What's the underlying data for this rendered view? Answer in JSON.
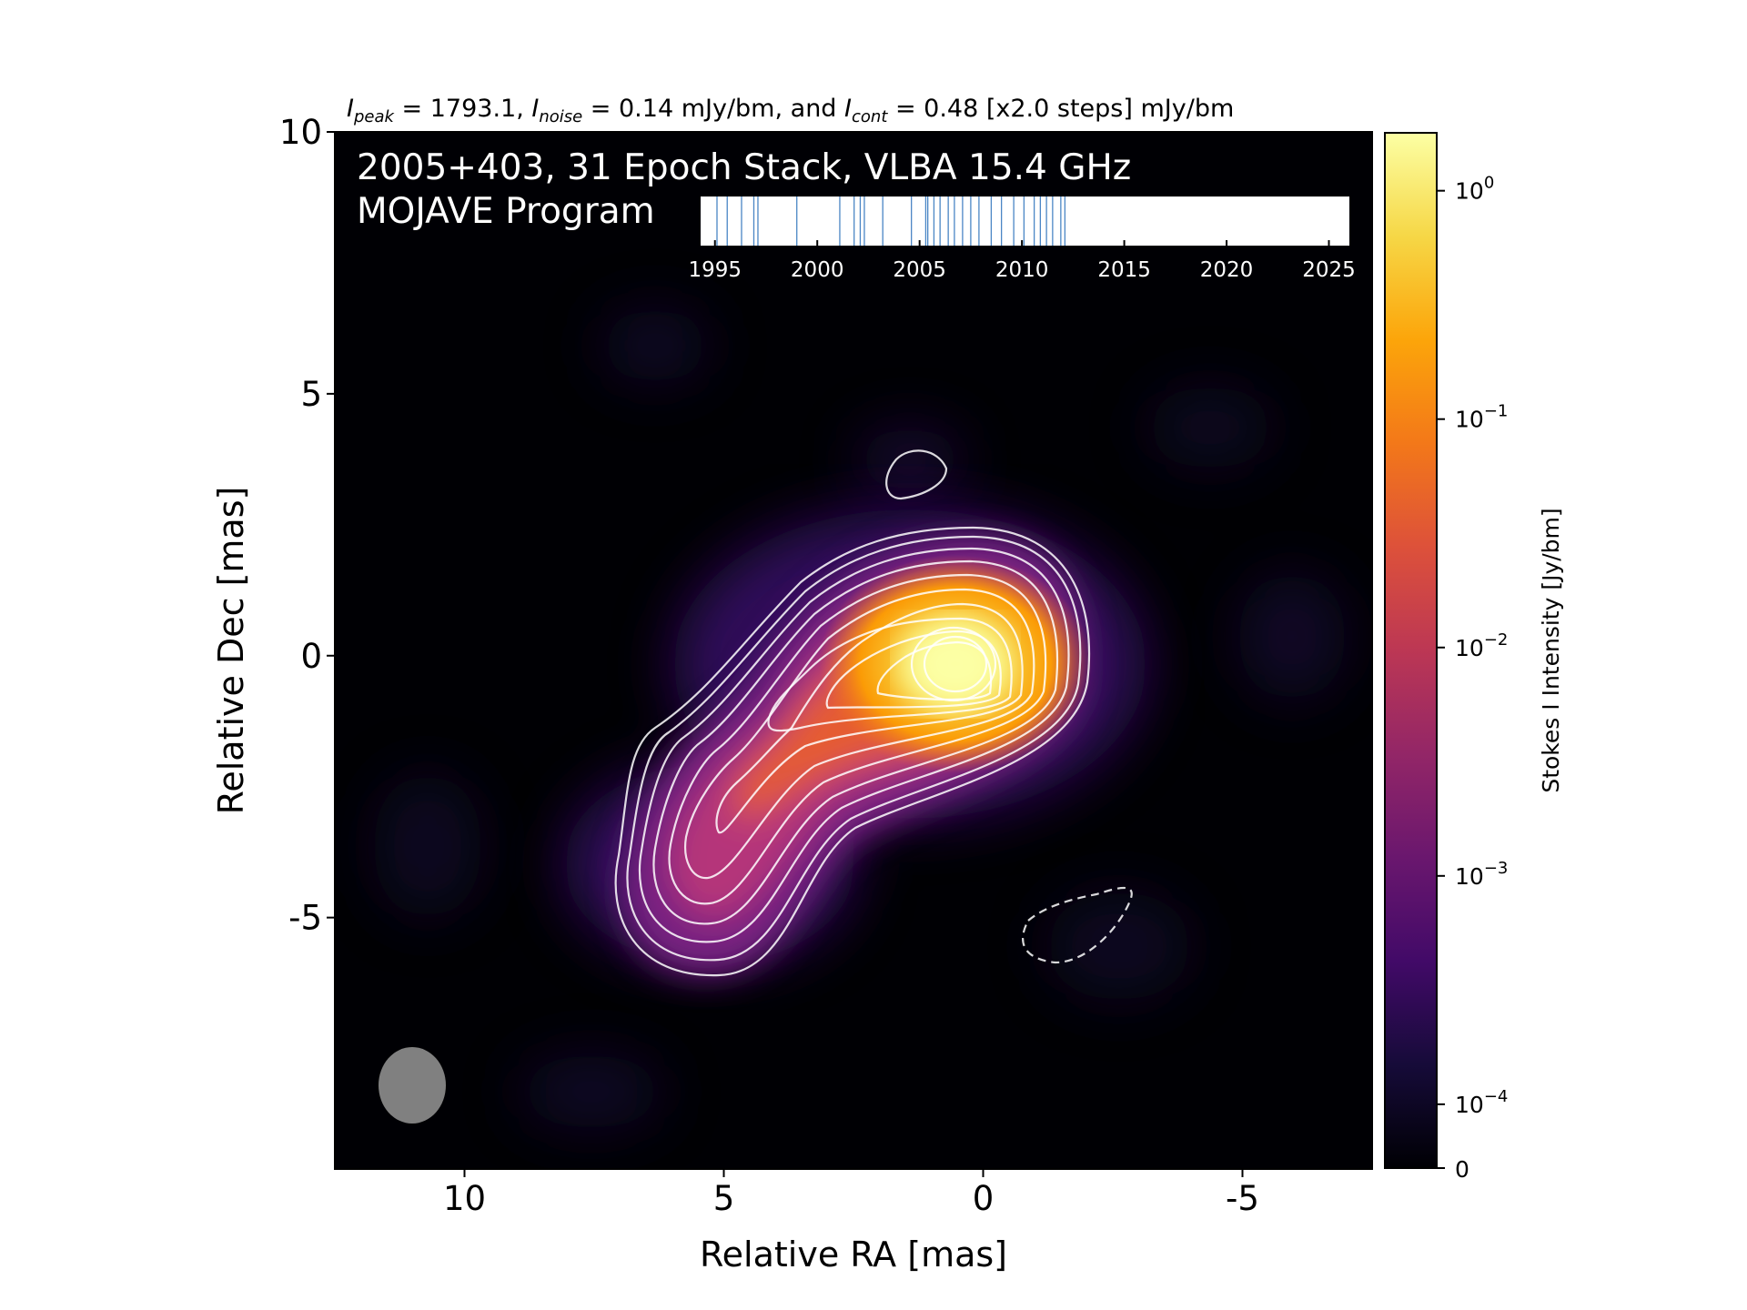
{
  "title_parts": {
    "peak_sym": "I",
    "peak_sub": "peak",
    "peak_val": " = 1793.1, ",
    "noise_sym": "I",
    "noise_sub": "noise",
    "noise_val": " = 0.14 mJy/bm, and ",
    "cont_sym": "I",
    "cont_sub": "cont",
    "cont_val": " = 0.48 [x2.0 steps] mJy/bm"
  },
  "panel": {
    "line1": "2005+403, 31 Epoch Stack, VLBA 15.4 GHz",
    "line2": "MOJAVE Program"
  },
  "timeline": {
    "ticks": [
      "1995",
      "2000",
      "2005",
      "2010",
      "2015",
      "2020",
      "2025"
    ],
    "epochs": [
      1995.1,
      1995.6,
      1996.3,
      1996.9,
      1997.1,
      1999.0,
      2001.1,
      2001.8,
      2002.1,
      2002.3,
      2003.2,
      2004.6,
      2005.3,
      2005.4,
      2005.7,
      2006.0,
      2006.4,
      2006.7,
      2007.1,
      2007.5,
      2007.9,
      2008.5,
      2009.0,
      2009.6,
      2010.1,
      2010.6,
      2010.9,
      2011.2,
      2011.5,
      2011.9,
      2012.1
    ],
    "line_color": "#4a86c5"
  },
  "chart_data": {
    "type": "heatmap",
    "xlabel": "Relative RA [mas]",
    "ylabel": "Relative Dec [mas]",
    "xlim": [
      12.5,
      -7.5
    ],
    "ylim": [
      -9.8,
      10
    ],
    "x_ticks": [
      "10",
      "5",
      "0",
      "-5"
    ],
    "x_tick_values": [
      10,
      5,
      0,
      -5
    ],
    "y_ticks": [
      "10",
      "5",
      "0",
      "-5"
    ],
    "y_tick_values": [
      10,
      5,
      0,
      -5
    ],
    "colormap": "inferno",
    "colorbar": {
      "label": "Stokes I Intensity [Jy/bm]",
      "scale": "log",
      "ticks": [
        {
          "base": "10",
          "exp": "0",
          "value": 1
        },
        {
          "base": "10",
          "exp": "−1",
          "value": 0.1
        },
        {
          "base": "10",
          "exp": "−2",
          "value": 0.01
        },
        {
          "base": "10",
          "exp": "−3",
          "value": 0.001
        },
        {
          "base": "10",
          "exp": "−4",
          "value": 0.0001
        }
      ],
      "zero_label": "0",
      "range": [
        0,
        1.7931
      ]
    },
    "peak_position": [
      0.3,
      -0.2
    ],
    "peak_jy_bm": 1.7931,
    "noise_mjy_bm": 0.14,
    "lowest_contour_mjy_bm": 0.48,
    "contour_step": 2.0,
    "beam": {
      "ra_center": 10.7,
      "dec_center": -8.2,
      "color": "#808080"
    },
    "contour_color": "#ffffff",
    "negative_contour_style": "dashed"
  }
}
